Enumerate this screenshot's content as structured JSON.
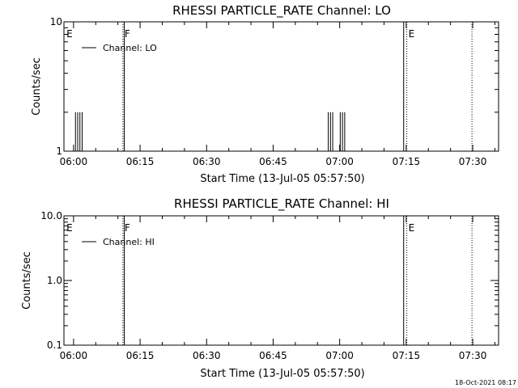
{
  "chart_data": [
    {
      "type": "line",
      "title": "RHESSI PARTICLE_RATE Channel: LO",
      "xlabel": "Start Time (13-Jul-05 05:57:50)",
      "ylabel": "Counts/sec",
      "x_tick_labels": [
        "06:00",
        "06:15",
        "06:30",
        "06:45",
        "07:00",
        "07:15",
        "07:30"
      ],
      "x_tick_minutes": [
        2.17,
        17.17,
        32.17,
        47.17,
        62.17,
        77.17,
        92.17
      ],
      "xlim_minutes": [
        0,
        98
      ],
      "y_scale": "log",
      "ylim": [
        1,
        10
      ],
      "y_tick_labels": [
        "1",
        "10"
      ],
      "y_tick_values": [
        1,
        10
      ],
      "series": [
        {
          "name": "Channel: LO",
          "spikes": [
            {
              "x": 2.6,
              "y": 2
            },
            {
              "x": 3.1,
              "y": 2
            },
            {
              "x": 3.6,
              "y": 2
            },
            {
              "x": 4.1,
              "y": 2
            },
            {
              "x": 59.6,
              "y": 2
            },
            {
              "x": 60.1,
              "y": 2
            },
            {
              "x": 60.6,
              "y": 2
            },
            {
              "x": 62.3,
              "y": 2
            },
            {
              "x": 62.8,
              "y": 2
            },
            {
              "x": 63.3,
              "y": 2
            }
          ]
        }
      ],
      "event_lines": [
        {
          "x": 0.2,
          "label": "E",
          "style": "none"
        },
        {
          "x": 13.3,
          "label": "F",
          "style": "dotted"
        },
        {
          "x": 13.6,
          "label": "",
          "style": "solid"
        },
        {
          "x": 76.6,
          "label": "",
          "style": "solid"
        },
        {
          "x": 77.3,
          "label": "E",
          "style": "dotted"
        },
        {
          "x": 92.0,
          "label": "",
          "style": "dotted"
        }
      ]
    },
    {
      "type": "line",
      "title": "RHESSI PARTICLE_RATE Channel: HI",
      "xlabel": "Start Time (13-Jul-05 05:57:50)",
      "ylabel": "Counts/sec",
      "x_tick_labels": [
        "06:00",
        "06:15",
        "06:30",
        "06:45",
        "07:00",
        "07:15",
        "07:30"
      ],
      "x_tick_minutes": [
        2.17,
        17.17,
        32.17,
        47.17,
        62.17,
        77.17,
        92.17
      ],
      "xlim_minutes": [
        0,
        98
      ],
      "y_scale": "log",
      "ylim": [
        0.1,
        10
      ],
      "y_tick_labels": [
        "0.1",
        "1.0",
        "10.0"
      ],
      "y_tick_values": [
        0.1,
        1,
        10
      ],
      "series": [
        {
          "name": "Channel: HI",
          "spikes": []
        }
      ],
      "event_lines": [
        {
          "x": 0.2,
          "label": "E",
          "style": "none"
        },
        {
          "x": 13.3,
          "label": "F",
          "style": "dotted"
        },
        {
          "x": 13.6,
          "label": "",
          "style": "solid"
        },
        {
          "x": 76.6,
          "label": "",
          "style": "solid"
        },
        {
          "x": 77.3,
          "label": "E",
          "style": "dotted"
        },
        {
          "x": 92.0,
          "label": "",
          "style": "dotted"
        }
      ]
    }
  ],
  "footer": {
    "timestamp": "18-Oct-2021 08:17"
  }
}
